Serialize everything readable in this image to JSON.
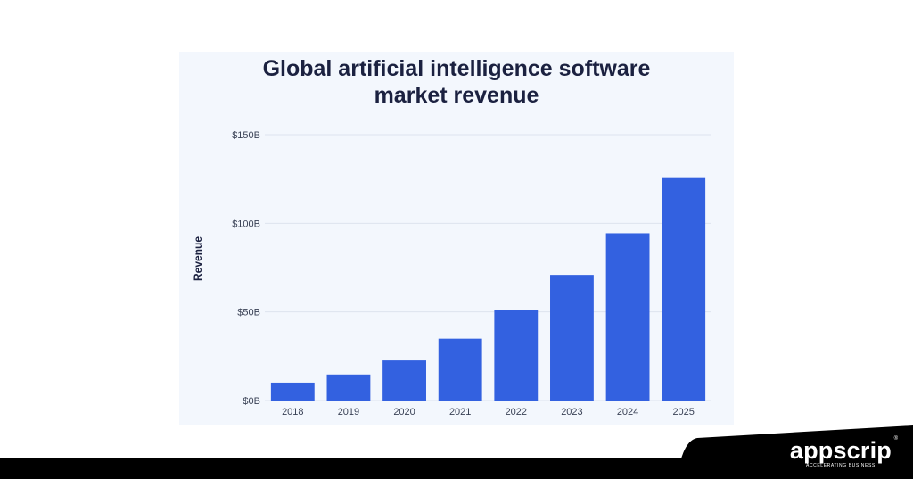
{
  "chart_data": {
    "type": "bar",
    "title_lines": [
      "Global artificial intelligence software",
      "market revenue"
    ],
    "ylabel": "Revenue",
    "xlabel": "",
    "categories": [
      "2018",
      "2019",
      "2020",
      "2021",
      "2022",
      "2023",
      "2024",
      "2025"
    ],
    "values": [
      10.1,
      14.7,
      22.6,
      34.9,
      51.3,
      70.9,
      94.4,
      126.0
    ],
    "ylim": [
      0,
      150
    ],
    "yticks": [
      {
        "value": 0,
        "label": "$0B"
      },
      {
        "value": 50,
        "label": "$50B"
      },
      {
        "value": 100,
        "label": "$100B"
      },
      {
        "value": 150,
        "label": "$150B"
      }
    ],
    "grid": true,
    "legend": "none",
    "bar_color": "#3361e0",
    "grid_color": "#dde3ee",
    "text_color": "#1b2140",
    "tick_color": "#3a4256"
  },
  "brand": {
    "name": "appscrip",
    "tagline": "ACCELERATING BUSINESS",
    "registered": "®"
  },
  "colors": {
    "card_background": "#f3f7fd",
    "footer": "#000000"
  }
}
